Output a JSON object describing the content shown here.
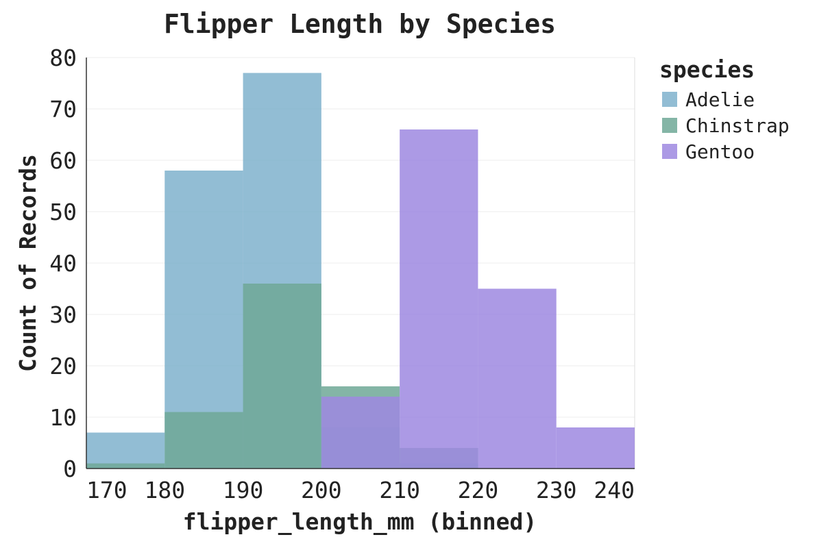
{
  "chart_data": {
    "type": "bar",
    "title": "Flipper Length by Species",
    "xlabel": "flipper_length_mm (binned)",
    "ylabel": "Count of Records",
    "bins": [
      [
        170,
        180
      ],
      [
        180,
        190
      ],
      [
        190,
        200
      ],
      [
        200,
        210
      ],
      [
        210,
        220
      ],
      [
        220,
        230
      ],
      [
        230,
        240
      ]
    ],
    "x_ticks": [
      170,
      180,
      190,
      200,
      210,
      220,
      230,
      240
    ],
    "xlim": [
      170,
      240
    ],
    "ylim": [
      0,
      80
    ],
    "y_ticks": [
      0,
      10,
      20,
      30,
      40,
      50,
      60,
      70,
      80
    ],
    "grid": true,
    "legend_title": "species",
    "legend_position": "right",
    "series": [
      {
        "name": "Adelie",
        "color": "#7fb1cc",
        "values": [
          7,
          58,
          77,
          8,
          1,
          0,
          0
        ]
      },
      {
        "name": "Chinstrap",
        "color": "#6fa896",
        "values": [
          1,
          11,
          36,
          16,
          4,
          0,
          0
        ]
      },
      {
        "name": "Gentoo",
        "color": "#9e88e0",
        "values": [
          0,
          0,
          0,
          14,
          66,
          35,
          8
        ]
      }
    ]
  }
}
